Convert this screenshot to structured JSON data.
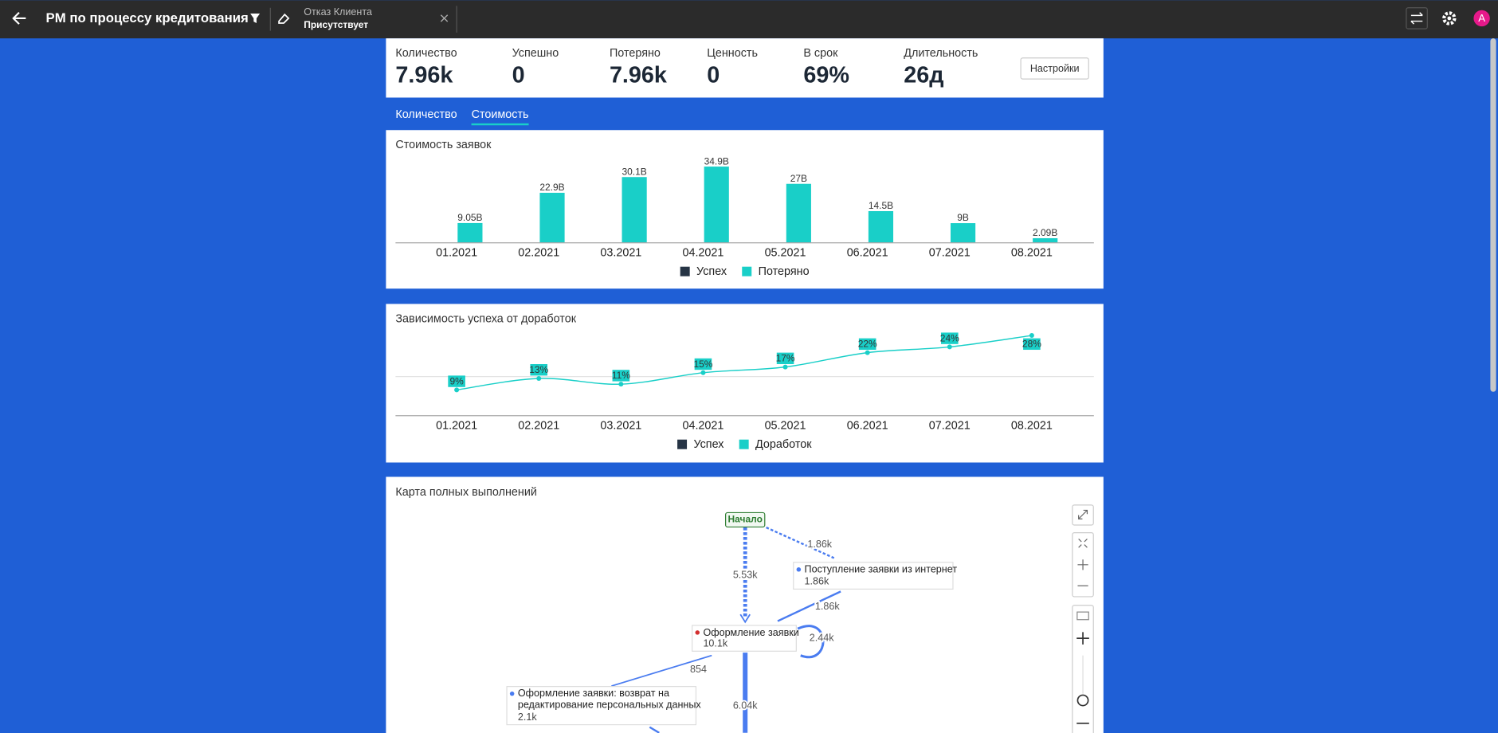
{
  "header": {
    "title": "PM по процессу кредитования",
    "filter": {
      "label": "Отказ Клиента",
      "value": "Присутствует"
    },
    "avatar": "A"
  },
  "kpis": [
    {
      "label": "Количество",
      "value": "7.96k"
    },
    {
      "label": "Успешно",
      "value": "0"
    },
    {
      "label": "Потеряно",
      "value": "7.96k"
    },
    {
      "label": "Ценность",
      "value": "0"
    },
    {
      "label": "В срок",
      "value": "69%"
    },
    {
      "label": "Длительность",
      "value": "26д"
    }
  ],
  "settings_button": "Настройки",
  "tabs": {
    "items": [
      "Количество",
      "Стоимость"
    ],
    "active": 1
  },
  "chart_data": [
    {
      "type": "bar",
      "title": "Стоимость заявок",
      "categories": [
        "01.2021",
        "02.2021",
        "03.2021",
        "04.2021",
        "05.2021",
        "06.2021",
        "07.2021",
        "08.2021"
      ],
      "series": [
        {
          "name": "Успех",
          "color": "#263445",
          "values": [
            0,
            0,
            0,
            0,
            0,
            0,
            0,
            0
          ]
        },
        {
          "name": "Потеряно",
          "color": "#19cfc8",
          "values": [
            9.05,
            22.9,
            30.1,
            34.9,
            27,
            14.5,
            9,
            2.09
          ],
          "value_labels": [
            "9.05B",
            "22.9B",
            "30.1B",
            "34.9B",
            "27B",
            "14.5B",
            "9B",
            "2.09B"
          ]
        }
      ],
      "ylim": [
        0,
        35
      ]
    },
    {
      "type": "line",
      "title": "Зависимость успеха от доработок",
      "categories": [
        "01.2021",
        "02.2021",
        "03.2021",
        "04.2021",
        "05.2021",
        "06.2021",
        "07.2021",
        "08.2021"
      ],
      "series": [
        {
          "name": "Успех",
          "color": "#263445",
          "values": [
            null,
            null,
            null,
            null,
            null,
            null,
            null,
            null
          ]
        },
        {
          "name": "Доработок",
          "color": "#19cfc8",
          "values": [
            9,
            13,
            11,
            15,
            17,
            22,
            24,
            28
          ],
          "value_labels": [
            "9%",
            "13%",
            "11%",
            "15%",
            "17%",
            "22%",
            "24%",
            "28%"
          ]
        }
      ],
      "ylim": [
        0,
        30
      ]
    }
  ],
  "process_map": {
    "title": "Карта полных выполнений",
    "nodes": [
      {
        "label": "Начало"
      },
      {
        "label": "Поступление заявки из интернет",
        "count": "1.86k"
      },
      {
        "label": "Оформление заявки",
        "count": "10.1k"
      },
      {
        "label": "Оформление заявки: возврат на редактирование персональных данных",
        "count": "2.1k"
      }
    ],
    "edges": [
      {
        "label": "5.53k"
      },
      {
        "label": "1.86k"
      },
      {
        "label": "1.86k"
      },
      {
        "label": "2.44k"
      },
      {
        "label": "854"
      },
      {
        "label": "6.04k"
      }
    ]
  }
}
